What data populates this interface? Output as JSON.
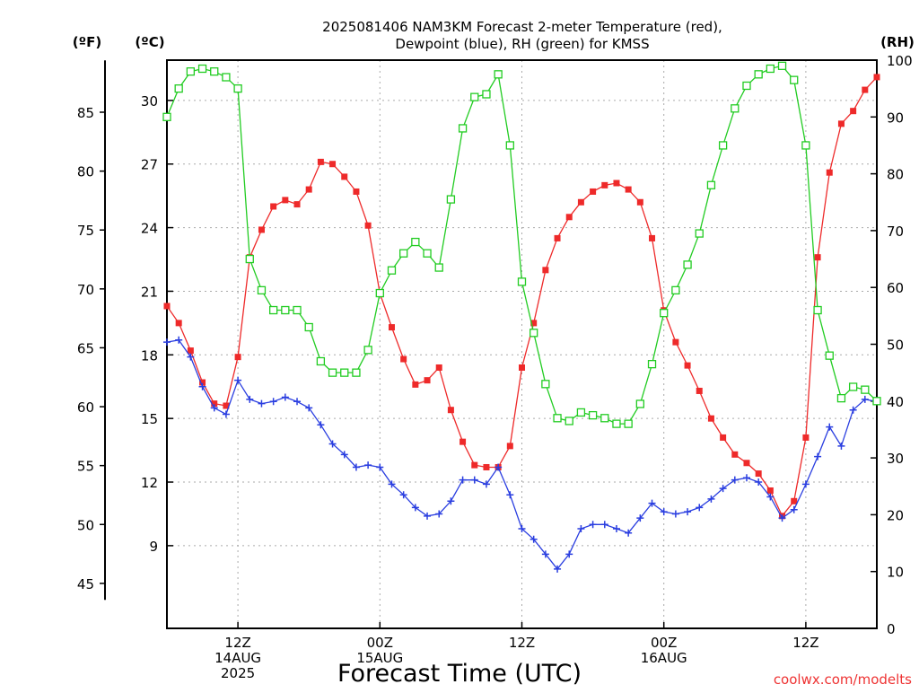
{
  "chart_data": {
    "type": "line",
    "title_line1": "2025081406 NAM3KM Forecast 2-meter Temperature (red),",
    "title_line2": "Dewpoint (blue), RH (green) for KMSS",
    "xlabel": "Forecast Time (UTC)",
    "credit": "coolwx.com/modelts",
    "unit_f": "(ºF)",
    "unit_c": "(ºC)",
    "unit_rh": "(RH)",
    "x_unit": "forecast hour",
    "x_range": [
      6,
      66
    ],
    "c_range": [
      5.1,
      31.9
    ],
    "f_axis_range": [
      43.6,
      89.4
    ],
    "rh_range": [
      0,
      100
    ],
    "grid": true,
    "x_ticks": [
      {
        "hour": 12,
        "line1": "12Z",
        "line2": "14AUG",
        "line3": "2025"
      },
      {
        "hour": 24,
        "line1": "00Z",
        "line2": "15AUG",
        "line3": ""
      },
      {
        "hour": 36,
        "line1": "12Z",
        "line2": "",
        "line3": ""
      },
      {
        "hour": 48,
        "line1": "00Z",
        "line2": "16AUG",
        "line3": ""
      },
      {
        "hour": 60,
        "line1": "12Z",
        "line2": "",
        "line3": ""
      }
    ],
    "c_ticks": [
      "9",
      "12",
      "15",
      "18",
      "21",
      "24",
      "27",
      "30"
    ],
    "f_ticks": [
      "45",
      "50",
      "55",
      "60",
      "65",
      "70",
      "75",
      "80",
      "85"
    ],
    "rh_ticks": [
      "0",
      "10",
      "20",
      "30",
      "40",
      "50",
      "60",
      "70",
      "80",
      "90",
      "100"
    ],
    "series": [
      {
        "name": "Temperature",
        "unit": "C",
        "color": "#ee2a2a",
        "marker": "filled-square",
        "x": [
          6,
          7,
          8,
          9,
          10,
          11,
          12,
          13,
          14,
          15,
          16,
          17,
          18,
          19,
          20,
          21,
          22,
          23,
          24,
          25,
          26,
          27,
          28,
          29,
          30,
          31,
          32,
          33,
          34,
          35,
          36,
          37,
          38,
          39,
          40,
          41,
          42,
          43,
          44,
          45,
          46,
          47,
          48,
          49,
          50,
          51,
          52,
          53,
          54,
          55,
          56,
          57,
          58,
          59,
          60,
          61,
          62,
          63,
          64,
          65,
          66
        ],
        "values": [
          20.3,
          19.5,
          18.2,
          16.7,
          15.7,
          15.6,
          17.9,
          22.6,
          23.9,
          25.0,
          25.3,
          25.1,
          25.8,
          27.1,
          27.0,
          26.4,
          25.7,
          24.1,
          20.9,
          19.3,
          17.8,
          16.6,
          16.8,
          17.4,
          15.4,
          13.9,
          12.8,
          12.7,
          12.7,
          13.7,
          17.4,
          19.5,
          22.0,
          23.5,
          24.5,
          25.2,
          25.7,
          26.0,
          26.1,
          25.8,
          25.2,
          23.5,
          20.1,
          18.6,
          17.5,
          16.3,
          15.0,
          14.1,
          13.3,
          12.9,
          12.4,
          11.6,
          10.4,
          11.1,
          14.1,
          22.6,
          26.6,
          28.9,
          29.5,
          30.5,
          31.1
        ]
      },
      {
        "name": "Dewpoint",
        "unit": "C",
        "color": "#2a3ee0",
        "marker": "plus",
        "x": [
          6,
          7,
          8,
          9,
          10,
          11,
          12,
          13,
          14,
          15,
          16,
          17,
          18,
          19,
          20,
          21,
          22,
          23,
          24,
          25,
          26,
          27,
          28,
          29,
          30,
          31,
          32,
          33,
          34,
          35,
          36,
          37,
          38,
          39,
          40,
          41,
          42,
          43,
          44,
          45,
          46,
          47,
          48,
          49,
          50,
          51,
          52,
          53,
          54,
          55,
          56,
          57,
          58,
          59,
          60,
          61,
          62,
          63,
          64,
          65,
          66
        ],
        "values": [
          18.6,
          18.7,
          17.9,
          16.5,
          15.5,
          15.2,
          16.8,
          15.9,
          15.7,
          15.8,
          16.0,
          15.8,
          15.5,
          14.7,
          13.8,
          13.3,
          12.7,
          12.8,
          12.7,
          11.9,
          11.4,
          10.8,
          10.4,
          10.5,
          11.1,
          12.1,
          12.1,
          11.9,
          12.7,
          11.4,
          9.8,
          9.3,
          8.6,
          7.9,
          8.6,
          9.8,
          10.0,
          10.0,
          9.8,
          9.6,
          10.3,
          11.0,
          10.6,
          10.5,
          10.6,
          10.8,
          11.2,
          11.7,
          12.1,
          12.2,
          12.0,
          11.3,
          10.3,
          10.7,
          11.9,
          13.2,
          14.6,
          13.7,
          15.4,
          15.9,
          15.8
        ]
      },
      {
        "name": "RH",
        "unit": "percent",
        "color": "#22cc22",
        "marker": "open-square",
        "x": [
          6,
          7,
          8,
          9,
          10,
          11,
          12,
          13,
          14,
          15,
          16,
          17,
          18,
          19,
          20,
          21,
          22,
          23,
          24,
          25,
          26,
          27,
          28,
          29,
          30,
          31,
          32,
          33,
          34,
          35,
          36,
          37,
          38,
          39,
          40,
          41,
          42,
          43,
          44,
          45,
          46,
          47,
          48,
          49,
          50,
          51,
          52,
          53,
          54,
          55,
          56,
          57,
          58,
          59,
          60,
          61,
          62,
          63,
          64,
          65,
          66
        ],
        "values": [
          90,
          95,
          98,
          98.5,
          98,
          97,
          95,
          65,
          59.5,
          56,
          56,
          56,
          53,
          47,
          45,
          45,
          45,
          49,
          59,
          63,
          66,
          68,
          66,
          63.5,
          75.5,
          88,
          93.5,
          94,
          97.5,
          85,
          61,
          52,
          43,
          37,
          36.5,
          38,
          37.5,
          37,
          36,
          36,
          39.5,
          46.5,
          55.5,
          59.5,
          64,
          69.5,
          78,
          85,
          91.5,
          95.5,
          97.5,
          98.5,
          99,
          96.5,
          85,
          56,
          48,
          40.5,
          42.5,
          42,
          40
        ]
      }
    ]
  }
}
